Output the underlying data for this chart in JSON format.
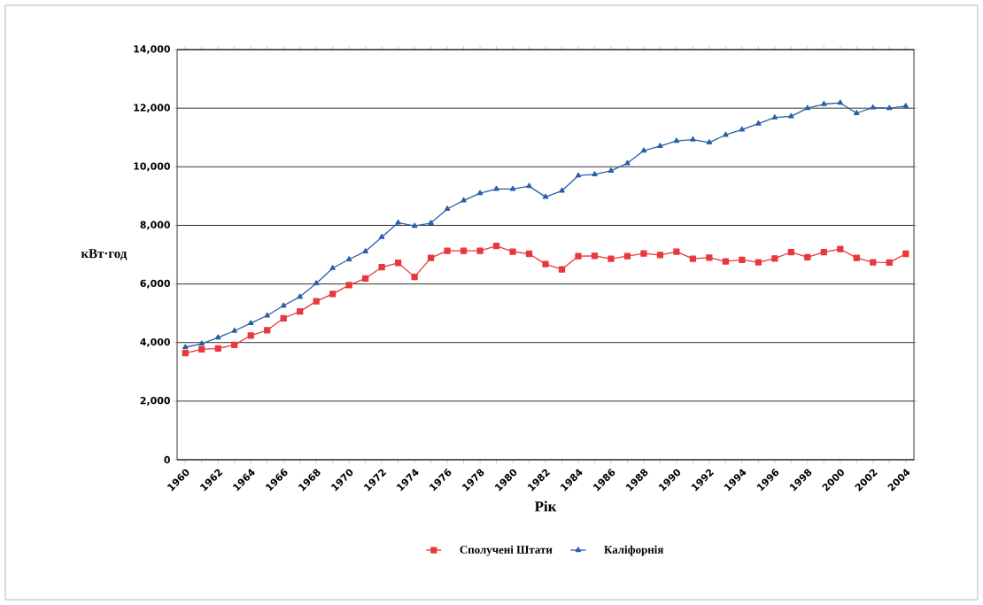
{
  "chart_data": {
    "type": "line",
    "xlabel": "Рік",
    "ylabel": "кВт·год",
    "x": [
      1960,
      1961,
      1962,
      1963,
      1964,
      1965,
      1966,
      1967,
      1968,
      1969,
      1970,
      1971,
      1972,
      1973,
      1974,
      1975,
      1976,
      1977,
      1978,
      1979,
      1980,
      1981,
      1982,
      1983,
      1984,
      1985,
      1986,
      1987,
      1988,
      1989,
      1990,
      1991,
      1992,
      1993,
      1994,
      1995,
      1996,
      1997,
      1998,
      1999,
      2000,
      2001,
      2002,
      2003,
      2004
    ],
    "series": [
      {
        "name": "Сполучені Штати",
        "color": "#e8383d",
        "marker": "square",
        "values": [
          3640,
          3770,
          3800,
          3920,
          4240,
          4420,
          4830,
          5060,
          5410,
          5660,
          5960,
          6190,
          6570,
          6720,
          6240,
          6890,
          7130,
          7130,
          7130,
          7300,
          7100,
          7030,
          6680,
          6500,
          6950,
          6960,
          6860,
          6950,
          7040,
          6990,
          7100,
          6860,
          6900,
          6770,
          6820,
          6740,
          6870,
          7090,
          6910,
          7090,
          7190,
          6890,
          6740,
          6730,
          7030
        ]
      },
      {
        "name": "Каліфорнія",
        "color": "#2a5ea8",
        "marker": "triangle",
        "values": [
          3840,
          3960,
          4170,
          4400,
          4660,
          4920,
          5260,
          5560,
          6020,
          6540,
          6840,
          7110,
          7600,
          8090,
          7980,
          8080,
          8560,
          8850,
          9100,
          9240,
          9240,
          9340,
          8970,
          9180,
          9700,
          9740,
          9860,
          10120,
          10550,
          10710,
          10880,
          10930,
          10830,
          11090,
          11270,
          11470,
          11680,
          11720,
          12000,
          12140,
          12180,
          11830,
          12020,
          12000,
          12070
        ]
      }
    ],
    "xlim": [
      1959.5,
      2004.5
    ],
    "xticks": [
      1960,
      {
        "value": 1961,
        "label": null
      },
      1962,
      {
        "value": 1963,
        "label": null
      },
      1964,
      {
        "value": 1965,
        "label": null
      },
      1966,
      {
        "value": 1967,
        "label": null
      },
      1968,
      {
        "value": 1969,
        "label": null
      },
      1970,
      {
        "value": 1971,
        "label": null
      },
      1972,
      {
        "value": 1973,
        "label": null
      },
      1974,
      {
        "value": 1975,
        "label": null
      },
      1976,
      {
        "value": 1977,
        "label": null
      },
      1978,
      {
        "value": 1979,
        "label": null
      },
      1980,
      {
        "value": 1981,
        "label": null
      },
      1982,
      {
        "value": 1983,
        "label": null
      },
      1984,
      {
        "value": 1985,
        "label": null
      },
      1986,
      {
        "value": 1987,
        "label": null
      },
      1988,
      {
        "value": 1989,
        "label": null
      },
      1990,
      {
        "value": 1991,
        "label": null
      },
      1992,
      {
        "value": 1993,
        "label": null
      },
      1994,
      {
        "value": 1995,
        "label": null
      },
      1996,
      {
        "value": 1997,
        "label": null
      },
      1998,
      {
        "value": 1999,
        "label": null
      },
      2000,
      {
        "value": 2001,
        "label": null
      },
      2002,
      {
        "value": 2003,
        "label": null
      },
      2004
    ],
    "ylim": [
      0,
      14000
    ],
    "yticks": [
      0,
      {
        "value": 2000,
        "label": "2,000"
      },
      {
        "value": 4000,
        "label": "4,000"
      },
      {
        "value": 6000,
        "label": "6,000"
      },
      {
        "value": 8000,
        "label": "8,000"
      },
      {
        "value": 10000,
        "label": "10,000"
      },
      {
        "value": 12000,
        "label": "12,000"
      },
      {
        "value": 14000,
        "label": "14,000"
      }
    ],
    "grid": "y",
    "legend": "bottom",
    "line_style": "solid"
  }
}
